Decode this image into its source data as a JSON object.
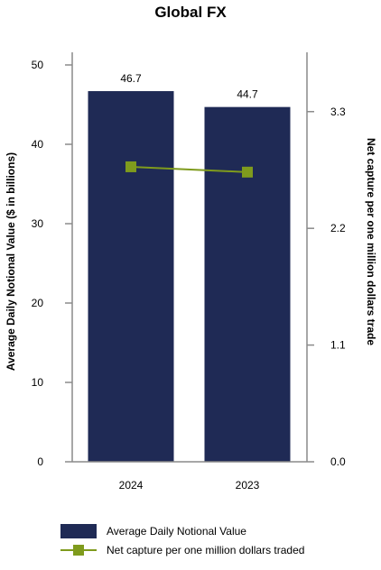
{
  "chart_data": {
    "type": "bar",
    "title": "Global FX",
    "categories": [
      "2024",
      "2023"
    ],
    "series": [
      {
        "name": "Average Daily Notional Value",
        "type": "bar",
        "axis": "left",
        "color": "#1f2a55",
        "values": [
          46.7,
          44.7
        ],
        "data_labels": [
          "46.7",
          "44.7"
        ]
      },
      {
        "name": "Net capture per one million dollars traded",
        "type": "line",
        "axis": "right",
        "color": "#7f9b1d",
        "marker": "square",
        "values": [
          2.78,
          2.73
        ]
      }
    ],
    "ylabel": "Average Daily Notional Value ($ in billions)",
    "ylabel_right": "Net capture per one million dollars trade",
    "ylim": [
      0,
      50
    ],
    "yticks": [
      0,
      10,
      20,
      30,
      40,
      50
    ],
    "ylim_right": [
      0,
      3.74
    ],
    "yticks_right": [
      0,
      1.1,
      2.2,
      3.3
    ],
    "ytick_labels_right": [
      "0.0",
      "1.1",
      "2.2",
      "3.3"
    ],
    "grid": false,
    "legend": "bottom"
  }
}
